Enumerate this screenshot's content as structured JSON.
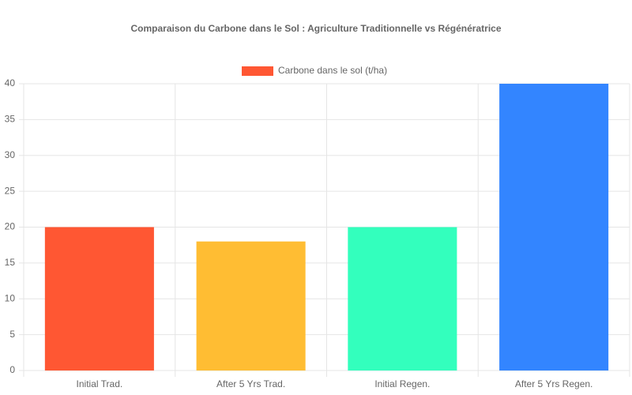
{
  "chart_data": {
    "type": "bar",
    "title": "Comparaison du Carbone dans le Sol : Agriculture Traditionnelle vs Régénératrice",
    "categories": [
      "Initial Trad.",
      "After 5 Yrs Trad.",
      "Initial Regen.",
      "After 5 Yrs Regen."
    ],
    "series": [
      {
        "name": "Carbone dans le sol (t/ha)",
        "colors": [
          "#FF5733",
          "#FFBD33",
          "#33FFBD",
          "#3385FF"
        ],
        "values": [
          20,
          18,
          20,
          40
        ]
      }
    ],
    "ylim": [
      0,
      40
    ],
    "yticks": [
      0,
      5,
      10,
      15,
      20,
      25,
      30,
      35,
      40
    ],
    "grid": true,
    "legend": "top"
  }
}
